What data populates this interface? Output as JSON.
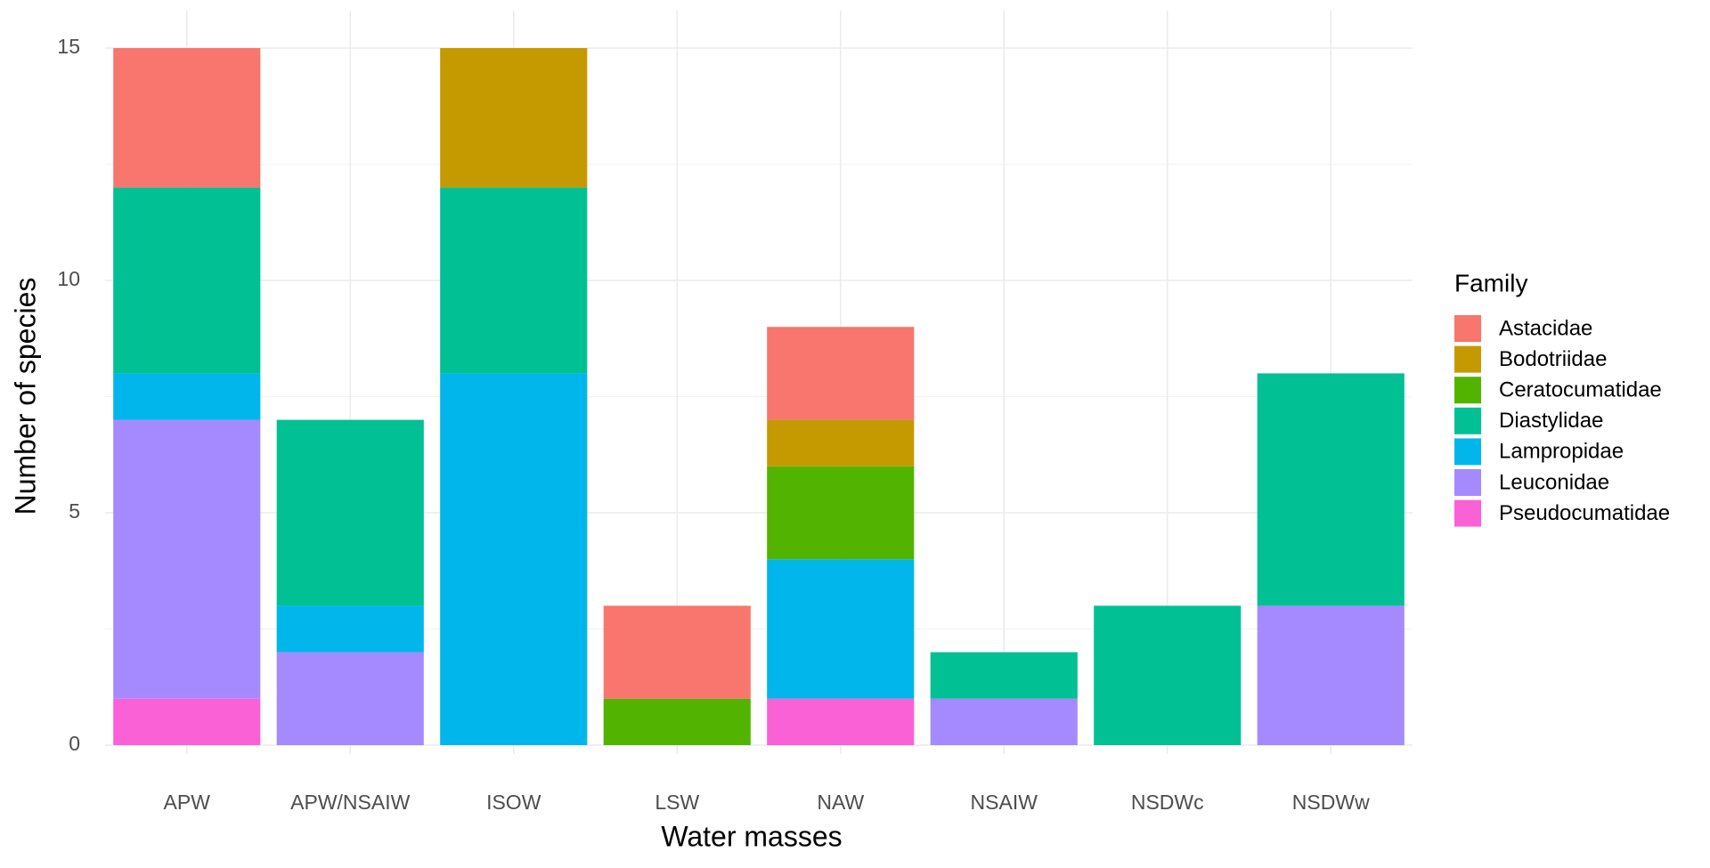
{
  "chart_data": {
    "type": "stacked_bar",
    "x_label": "Water masses",
    "y_label": "Number of species",
    "legend_title": "Family",
    "categories": [
      "APW",
      "APW/NSAIW",
      "ISOW",
      "LSW",
      "NAW",
      "NSAIW",
      "NSDWc",
      "NSDWw"
    ],
    "series": [
      {
        "name": "Astacidae",
        "color": "#F8766D",
        "values": [
          3,
          0,
          0,
          2,
          2,
          0,
          0,
          0
        ]
      },
      {
        "name": "Bodotriidae",
        "color": "#C49A00",
        "values": [
          0,
          0,
          3,
          0,
          1,
          0,
          0,
          0
        ]
      },
      {
        "name": "Ceratocumatidae",
        "color": "#53B400",
        "values": [
          0,
          0,
          0,
          1,
          2,
          0,
          0,
          0
        ]
      },
      {
        "name": "Diastylidae",
        "color": "#00C094",
        "values": [
          4,
          4,
          4,
          0,
          0,
          1,
          3,
          5
        ]
      },
      {
        "name": "Lampropidae",
        "color": "#00B6EB",
        "values": [
          1,
          1,
          8,
          0,
          3,
          0,
          0,
          0
        ]
      },
      {
        "name": "Leuconidae",
        "color": "#A58AFF",
        "values": [
          6,
          2,
          0,
          0,
          0,
          1,
          0,
          3
        ]
      },
      {
        "name": "Pseudocumatidae",
        "color": "#FB61D7",
        "values": [
          1,
          0,
          0,
          0,
          1,
          0,
          0,
          0
        ]
      }
    ],
    "ylim": [
      0,
      15
    ],
    "yticks": [
      0,
      5,
      10,
      15
    ],
    "grid": true,
    "legend": "right"
  }
}
